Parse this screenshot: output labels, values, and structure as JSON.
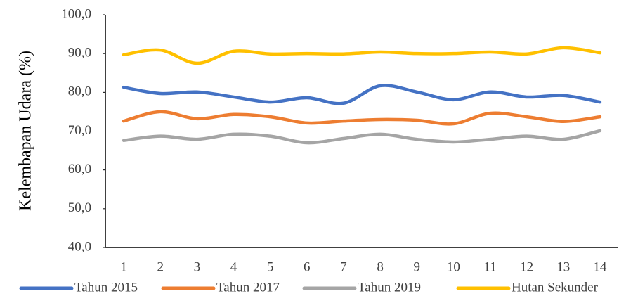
{
  "chart_data": {
    "type": "line",
    "y_label": "Kelembapan Udara  (%)",
    "categories": [
      "1",
      "2",
      "3",
      "4",
      "5",
      "6",
      "7",
      "8",
      "9",
      "10",
      "11",
      "12",
      "13",
      "14"
    ],
    "series": [
      {
        "name": "Tahun 2015",
        "color": "#4472c4",
        "values": [
          81.3,
          79.7,
          80.1,
          78.8,
          77.5,
          78.6,
          77.2,
          81.7,
          80.1,
          78.1,
          80.1,
          78.8,
          79.2,
          77.5
        ]
      },
      {
        "name": "Tahun 2017",
        "color": "#ed7d31",
        "values": [
          72.6,
          75.0,
          73.2,
          74.3,
          73.7,
          72.1,
          72.6,
          73.0,
          72.8,
          71.9,
          74.6,
          73.7,
          72.5,
          73.7
        ]
      },
      {
        "name": "Tahun 2019",
        "color": "#a5a5a5",
        "values": [
          67.6,
          68.7,
          67.9,
          69.2,
          68.7,
          67.0,
          68.1,
          69.2,
          67.9,
          67.2,
          67.9,
          68.7,
          67.9,
          70.1
        ]
      },
      {
        "name": "Hutan Sekunder",
        "color": "#ffc000",
        "values": [
          89.7,
          90.9,
          87.5,
          90.6,
          89.9,
          90.0,
          89.9,
          90.4,
          90.0,
          90.0,
          90.4,
          89.9,
          91.5,
          90.2
        ]
      }
    ],
    "ylim": [
      40,
      100
    ],
    "yticks": [
      {
        "value": 40,
        "label": "40,0"
      },
      {
        "value": 50,
        "label": "50,0"
      },
      {
        "value": 60,
        "label": "60,0"
      },
      {
        "value": 70,
        "label": "70,0"
      },
      {
        "value": 80,
        "label": "80,0"
      },
      {
        "value": 90,
        "label": "90,0"
      },
      {
        "value": 100,
        "label": "100,0"
      }
    ],
    "grid": false,
    "smooth": true,
    "legend": "bottom"
  }
}
